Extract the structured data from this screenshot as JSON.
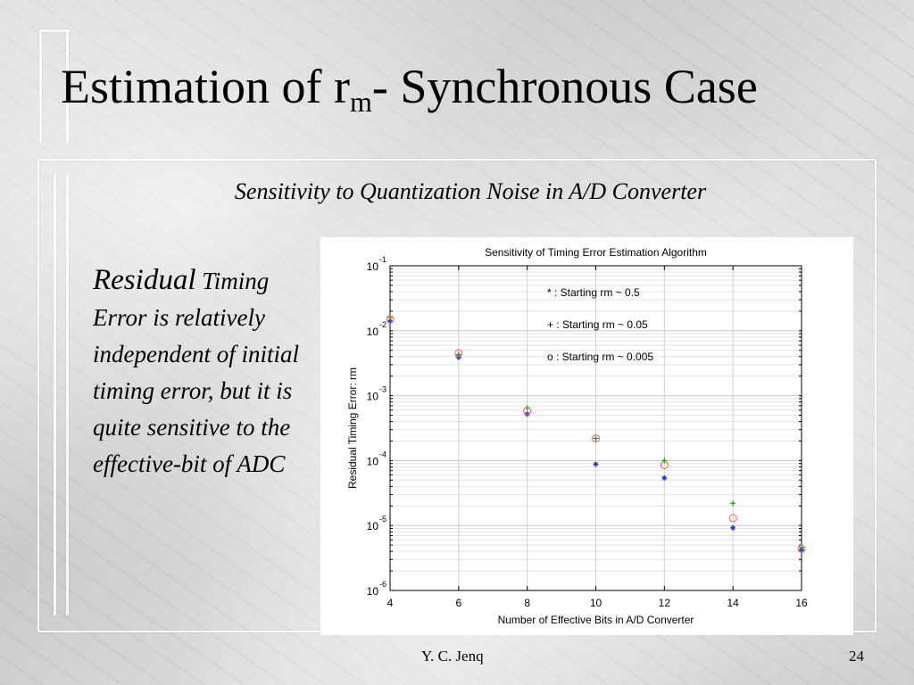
{
  "slide": {
    "title_main": "Estimation of r",
    "title_sub": "m",
    "title_rest": "- Synchronous Case",
    "subtitle": "Sensitivity to Quantization Noise in A/D Converter",
    "body_first_word": "Residual",
    "body_rest": " Timing Error is relatively independent of initial timing error, but it is quite sensitive to the effective-bit of ADC",
    "footer_author": "Y. C. Jenq",
    "footer_page": "24"
  },
  "chart_data": {
    "type": "scatter",
    "title": "Sensitivity of Timing Error Estimation Algorithm",
    "xlabel": "Number of Effective Bits in A/D Converter",
    "ylabel": "Residual Timing Error: rm",
    "xlim": [
      4,
      16
    ],
    "ylim": [
      1e-06,
      0.1
    ],
    "yscale": "log",
    "grid": true,
    "x_ticks": [
      "4",
      "6",
      "8",
      "10",
      "12",
      "14",
      "16"
    ],
    "y_ticks": [
      {
        "base": "10",
        "exp": "-1"
      },
      {
        "base": "10",
        "exp": "-2"
      },
      {
        "base": "10",
        "exp": "-3"
      },
      {
        "base": "10",
        "exp": "-4"
      },
      {
        "base": "10",
        "exp": "-5"
      },
      {
        "base": "10",
        "exp": "-6"
      }
    ],
    "annotations": [
      "* : Starting rm ~ 0.5",
      "+ : Starting rm ~ 0.05",
      "o : Starting rm ~ 0.005"
    ],
    "series": [
      {
        "marker": "*",
        "color": "#1f3fdc",
        "x": [
          4,
          6,
          8,
          10,
          12,
          14,
          16
        ],
        "y": [
          0.014,
          0.0039,
          0.00052,
          8.8e-05,
          5.4e-05,
          9.2e-06,
          4.2e-06
        ]
      },
      {
        "marker": "+",
        "color": "#1a9a1a",
        "x": [
          4,
          6,
          8,
          10,
          12,
          14,
          16
        ],
        "y": [
          0.016,
          0.0043,
          0.00065,
          0.00022,
          0.0001,
          2.2e-05,
          4.6e-06
        ]
      },
      {
        "marker": "o",
        "color": "#ff5a5a",
        "x": [
          4,
          6,
          8,
          10,
          12,
          14,
          16
        ],
        "y": [
          0.015,
          0.0045,
          0.00058,
          0.00022,
          8.5e-05,
          1.3e-05,
          4.4e-06
        ]
      }
    ]
  }
}
